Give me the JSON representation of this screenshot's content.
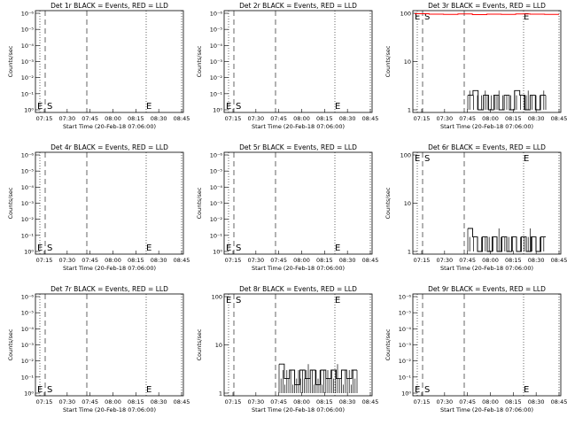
{
  "colors": {
    "events": "#000000",
    "lld": "#ff0000",
    "axis": "#000000"
  },
  "chart_data": [
    {
      "type": "line",
      "title": "Det 1r BLACK = Events, RED = LLD",
      "xlabel": "Start Time (20-Feb-18 07:06:00)",
      "ylabel": "Counts/sec",
      "x_ticks": [
        "07:15",
        "07:30",
        "07:45",
        "08:00",
        "08:15",
        "08:30",
        "08:45"
      ],
      "y_scale": "log",
      "y_ticks": [
        "10⁰",
        "10⁻¹",
        "10⁻²",
        "10⁻³",
        "10⁻⁴",
        "10⁻⁵",
        "10⁻⁶"
      ],
      "y_range_text": "1 to 10⁻⁶ (reversed)",
      "markers": [
        "E",
        "S",
        "E"
      ],
      "series": []
    },
    {
      "type": "line",
      "title": "Det 2r BLACK = Events, RED = LLD",
      "xlabel": "Start Time (20-Feb-18 07:06:00)",
      "ylabel": "Counts/sec",
      "x_ticks": [
        "07:15",
        "07:30",
        "07:45",
        "08:00",
        "08:15",
        "08:30",
        "08:45"
      ],
      "y_scale": "log",
      "y_ticks": [
        "10⁰",
        "10⁻¹",
        "10⁻²",
        "10⁻³",
        "10⁻⁴",
        "10⁻⁵",
        "10⁻⁶"
      ],
      "markers": [
        "E",
        "S",
        "E"
      ],
      "series": []
    },
    {
      "type": "line",
      "title": "Det 3r BLACK = Events, RED = LLD",
      "xlabel": "Start Time (20-Feb-18 07:06:00)",
      "ylabel": "Counts/sec",
      "x_ticks": [
        "07:15",
        "07:30",
        "07:45",
        "08:00",
        "08:15",
        "08:30",
        "08:45"
      ],
      "y_scale": "log",
      "y_ticks": [
        "100",
        "10",
        "1"
      ],
      "markers": [
        "E",
        "S",
        "E"
      ],
      "series": [
        {
          "color": "events",
          "values": [
            2,
            2.5,
            1,
            2,
            1,
            2,
            1,
            2,
            1,
            2.5,
            2,
            1,
            2,
            1,
            2
          ]
        },
        {
          "color": "lld",
          "values": [
            98,
            96,
            95,
            97,
            94,
            96,
            95,
            97,
            96,
            95
          ]
        }
      ]
    },
    {
      "type": "line",
      "title": "Det 4r BLACK = Events, RED = LLD",
      "xlabel": "Start Time (20-Feb-18 07:06:00)",
      "ylabel": "Counts/sec",
      "x_ticks": [
        "07:15",
        "07:30",
        "07:45",
        "08:00",
        "08:15",
        "08:30",
        "08:45"
      ],
      "y_scale": "log",
      "y_ticks": [
        "10⁰",
        "10⁻¹",
        "10⁻²",
        "10⁻³",
        "10⁻⁴",
        "10⁻⁵",
        "10⁻⁶"
      ],
      "markers": [
        "E",
        "S",
        "E"
      ],
      "series": []
    },
    {
      "type": "line",
      "title": "Det 5r BLACK = Events, RED = LLD",
      "xlabel": "Start Time (20-Feb-18 07:06:00)",
      "ylabel": "Counts/sec",
      "x_ticks": [
        "07:15",
        "07:30",
        "07:45",
        "08:00",
        "08:15",
        "08:30",
        "08:45"
      ],
      "y_scale": "log",
      "y_ticks": [
        "10⁰",
        "10⁻¹",
        "10⁻²",
        "10⁻³",
        "10⁻⁴",
        "10⁻⁵",
        "10⁻⁶"
      ],
      "markers": [
        "E",
        "S",
        "E"
      ],
      "series": []
    },
    {
      "type": "line",
      "title": "Det 6r BLACK = Events, RED = LLD",
      "xlabel": "Start Time (20-Feb-18 07:06:00)",
      "ylabel": "Counts/sec",
      "x_ticks": [
        "07:15",
        "07:30",
        "07:45",
        "08:00",
        "08:15",
        "08:30",
        "08:45"
      ],
      "y_scale": "log",
      "y_ticks": [
        "100",
        "10",
        "1"
      ],
      "markers": [
        "E",
        "S",
        "E"
      ],
      "series": [
        {
          "color": "events",
          "values": [
            3,
            2,
            1,
            2,
            1,
            2,
            1,
            2,
            1,
            2,
            1,
            2,
            1,
            2,
            1,
            2
          ]
        }
      ]
    },
    {
      "type": "line",
      "title": "Det 7r BLACK = Events, RED = LLD",
      "xlabel": "Start Time (20-Feb-18 07:06:00)",
      "ylabel": "Counts/sec",
      "x_ticks": [
        "07:15",
        "07:30",
        "07:45",
        "08:00",
        "08:15",
        "08:30",
        "08:45"
      ],
      "y_scale": "log",
      "y_ticks": [
        "10⁰",
        "10⁻¹",
        "10⁻²",
        "10⁻³",
        "10⁻⁴",
        "10⁻⁵",
        "10⁻⁶"
      ],
      "markers": [
        "E",
        "S",
        "E"
      ],
      "series": []
    },
    {
      "type": "line",
      "title": "Det 8r BLACK = Events, RED = LLD",
      "xlabel": "Start Time (20-Feb-18 07:06:00)",
      "ylabel": "Counts/sec",
      "x_ticks": [
        "07:15",
        "07:30",
        "07:45",
        "08:00",
        "08:15",
        "08:30",
        "08:45"
      ],
      "y_scale": "log",
      "y_ticks": [
        "100",
        "10",
        "1"
      ],
      "markers": [
        "E",
        "S",
        "E"
      ],
      "series": [
        {
          "color": "events",
          "values": [
            4,
            2,
            3,
            1.5,
            3,
            2,
            3,
            1.5,
            3,
            2,
            3,
            2,
            3,
            2,
            3
          ]
        }
      ]
    },
    {
      "type": "line",
      "title": "Det 9r BLACK = Events, RED = LLD",
      "xlabel": "Start Time (20-Feb-18 07:06:00)",
      "ylabel": "Counts/sec",
      "x_ticks": [
        "07:15",
        "07:30",
        "07:45",
        "08:00",
        "08:15",
        "08:30",
        "08:45"
      ],
      "y_scale": "log",
      "y_ticks": [
        "10⁰",
        "10⁻¹",
        "10⁻²",
        "10⁻³",
        "10⁻⁴",
        "10⁻⁵",
        "10⁻⁶"
      ],
      "markers": [
        "E",
        "S",
        "E"
      ],
      "series": []
    }
  ]
}
